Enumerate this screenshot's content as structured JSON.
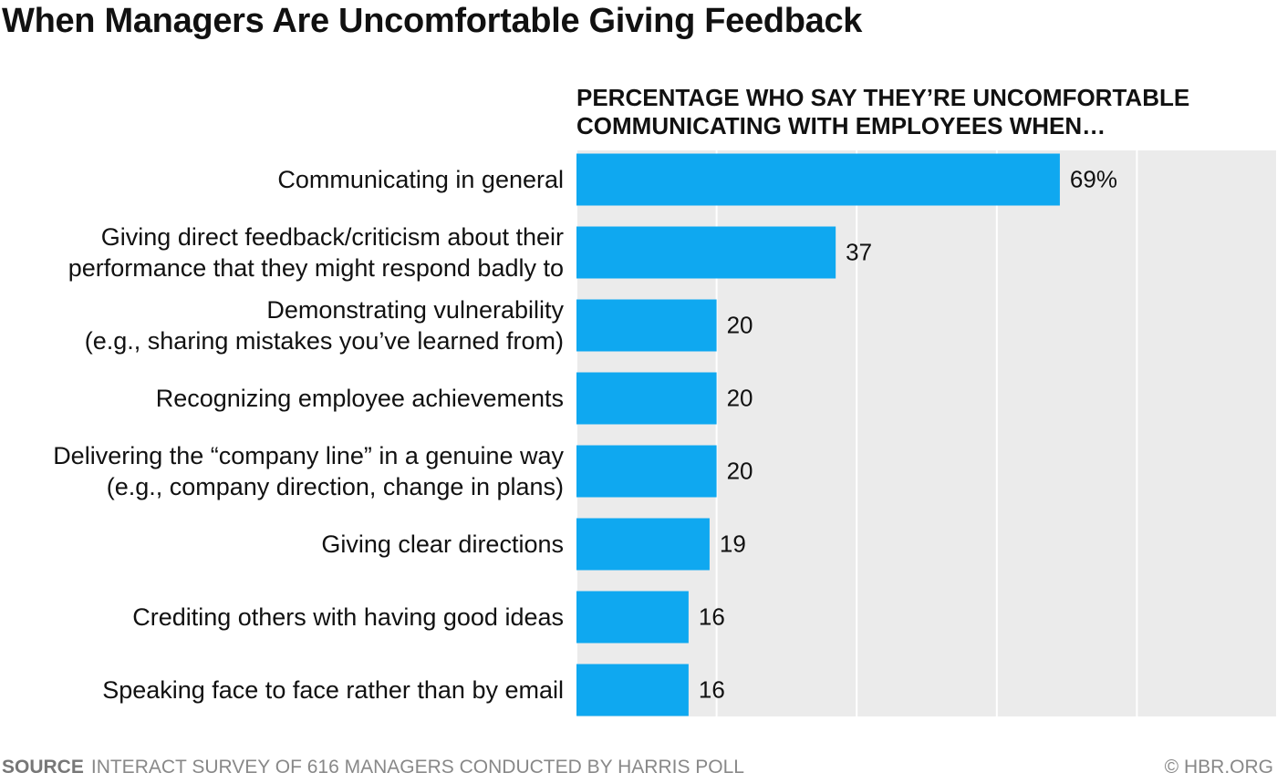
{
  "chart_data": {
    "type": "bar",
    "orientation": "horizontal",
    "title": "When Managers Are Uncomfortable Giving Feedback",
    "subtitle": "PERCENTAGE WHO SAY THEY’RE UNCOMFORTABLE\nCOMMUNICATING WITH EMPLOYEES WHEN…",
    "categories": [
      "Communicating in general",
      "Giving direct feedback/criticism about their\nperformance that they might respond badly to",
      "Demonstrating vulnerability\n(e.g., sharing mistakes you’ve learned from)",
      "Recognizing employee achievements",
      "Delivering the “company line” in a genuine way\n(e.g., company direction, change in plans)",
      "Giving clear directions",
      "Crediting others with having good ideas",
      "Speaking face to face rather than by email"
    ],
    "values": [
      69,
      37,
      20,
      20,
      20,
      19,
      16,
      16
    ],
    "value_labels": [
      "69%",
      "37",
      "20",
      "20",
      "20",
      "19",
      "16",
      "16"
    ],
    "color": "#0fa8f0",
    "xlim": [
      0,
      100
    ],
    "xticks": [
      0,
      20,
      40,
      60,
      80,
      100
    ],
    "grid": true,
    "source_label": "SOURCE",
    "source": "INTERACT SURVEY OF 616 MANAGERS CONDUCTED BY HARRIS POLL",
    "copyright": "© HBR.ORG"
  }
}
